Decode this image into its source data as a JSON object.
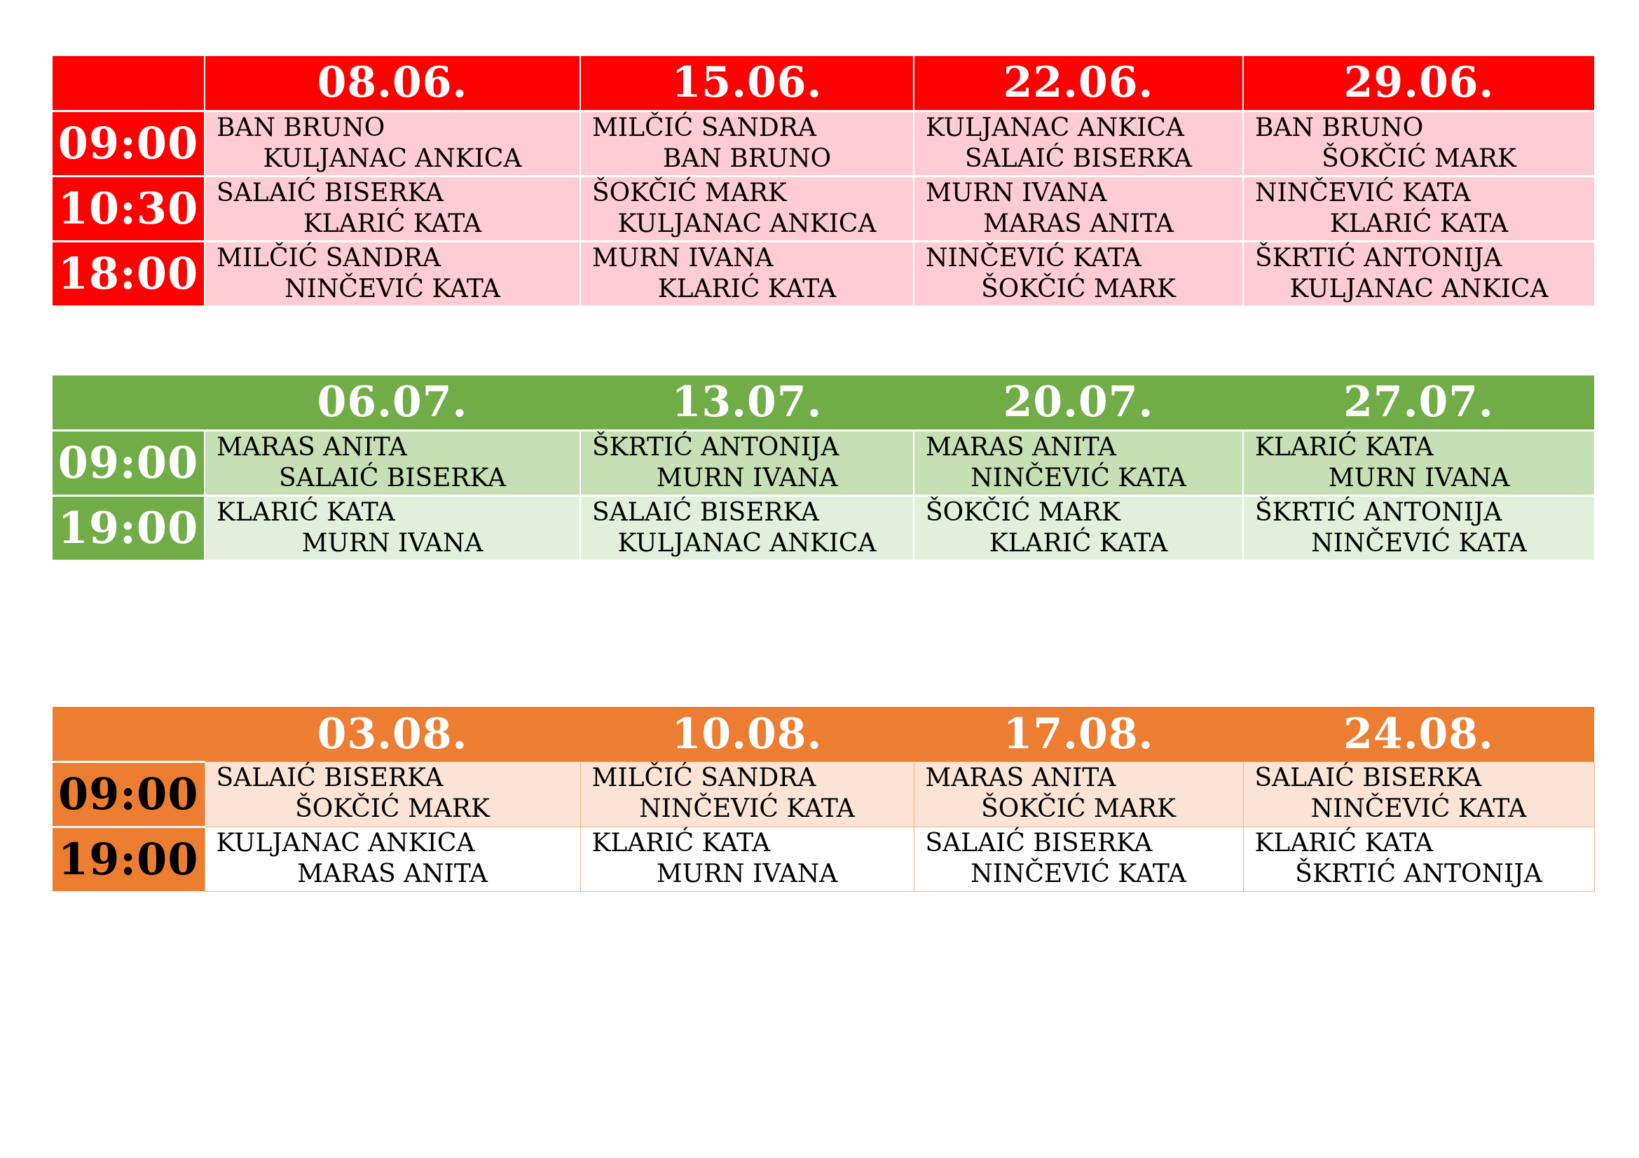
{
  "colors": {
    "june": "#ff0000",
    "july": "#70ad47",
    "august": "#ed7d31"
  },
  "tables": [
    {
      "dates": [
        "08.06.",
        "15.06.",
        "22.06.",
        "29.06."
      ],
      "rows": [
        {
          "time": "09:00",
          "cells": [
            {
              "first": "BAN BRUNO",
              "second": "KULJANAC ANKICA"
            },
            {
              "first": "MILČIĆ SANDRA",
              "second": "BAN BRUNO"
            },
            {
              "first": "KULJANAC ANKICA",
              "second": "SALAIĆ BISERKA"
            },
            {
              "first": "BAN BRUNO",
              "second": "ŠOKČIĆ MARK"
            }
          ]
        },
        {
          "time": "10:30",
          "cells": [
            {
              "first": "SALAIĆ BISERKA",
              "second": "KLARIĆ KATA"
            },
            {
              "first": "ŠOKČIĆ MARK",
              "second": "KULJANAC ANKICA"
            },
            {
              "first": "MURN IVANA",
              "second": "MARAS ANITA"
            },
            {
              "first": "NINČEVIĆ KATA",
              "second": "KLARIĆ KATA"
            }
          ]
        },
        {
          "time": "18:00",
          "cells": [
            {
              "first": "MILČIĆ SANDRA",
              "second": "NINČEVIĆ KATA"
            },
            {
              "first": "MURN IVANA",
              "second": "KLARIĆ KATA"
            },
            {
              "first": "NINČEVIĆ KATA",
              "second": "ŠOKČIĆ MARK"
            },
            {
              "first": "ŠKRTIĆ ANTONIJA",
              "second": "KULJANAC ANKICA"
            }
          ]
        }
      ]
    },
    {
      "dates": [
        "06.07.",
        "13.07.",
        "20.07.",
        "27.07."
      ],
      "rows": [
        {
          "time": "09:00",
          "cells": [
            {
              "first": "MARAS ANITA",
              "second": "SALAIĆ BISERKA"
            },
            {
              "first": "ŠKRTIĆ ANTONIJA",
              "second": "MURN IVANA"
            },
            {
              "first": "MARAS ANITA",
              "second": "NINČEVIĆ KATA"
            },
            {
              "first": "KLARIĆ KATA",
              "second": "MURN IVANA"
            }
          ]
        },
        {
          "time": "19:00",
          "cells": [
            {
              "first": "KLARIĆ KATA",
              "second": "MURN IVANA"
            },
            {
              "first": "SALAIĆ BISERKA",
              "second": "KULJANAC ANKICA"
            },
            {
              "first": "ŠOKČIĆ MARK",
              "second": "KLARIĆ KATA"
            },
            {
              "first": "ŠKRTIĆ ANTONIJA",
              "second": "NINČEVIĆ KATA"
            }
          ]
        }
      ]
    },
    {
      "dates": [
        "03.08.",
        "10.08.",
        "17.08.",
        "24.08."
      ],
      "rows": [
        {
          "time": "09:00",
          "cells": [
            {
              "first": "SALAIĆ BISERKA",
              "second": "ŠOKČIĆ MARK"
            },
            {
              "first": "MILČIĆ SANDRA",
              "second": "NINČEVIĆ KATA"
            },
            {
              "first": "MARAS ANITA",
              "second": "ŠOKČIĆ MARK"
            },
            {
              "first": "SALAIĆ BISERKA",
              "second": "NINČEVIĆ KATA"
            }
          ]
        },
        {
          "time": "19:00",
          "cells": [
            {
              "first": "KULJANAC ANKICA",
              "second": "MARAS ANITA"
            },
            {
              "first": "KLARIĆ KATA",
              "second": "MURN IVANA"
            },
            {
              "first": "SALAIĆ BISERKA",
              "second": "NINČEVIĆ KATA"
            },
            {
              "first": "KLARIĆ KATA",
              "second": "ŠKRTIĆ ANTONIJA"
            }
          ]
        }
      ]
    }
  ]
}
